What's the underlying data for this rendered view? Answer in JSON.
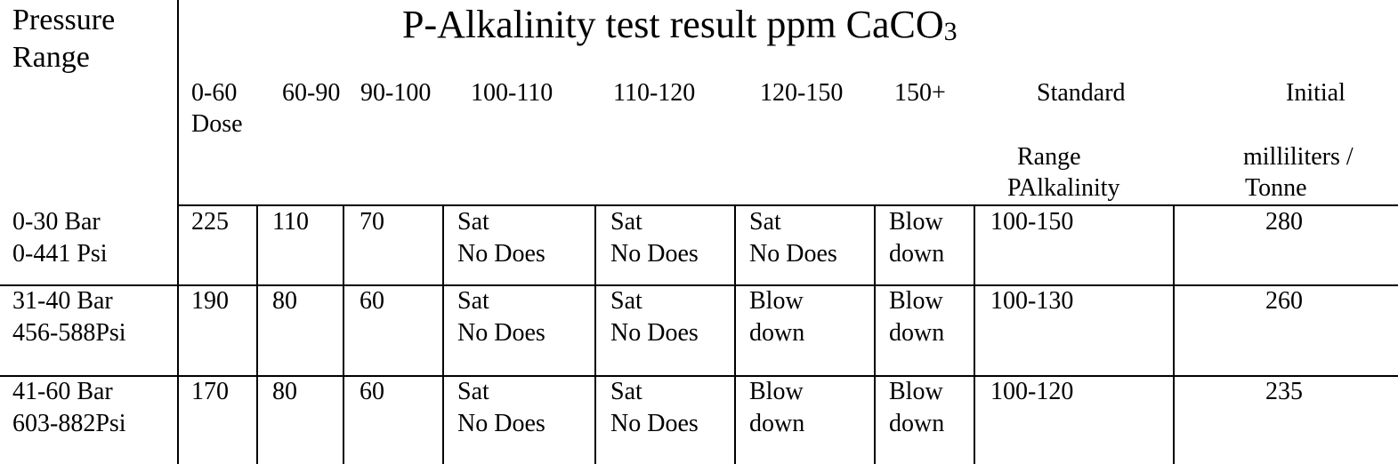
{
  "title": {
    "main": "P-Alkalinity test result  ppm CaCO",
    "sub": "3"
  },
  "row_header": {
    "line1": "Pressure",
    "line2": "Range"
  },
  "columns": {
    "c1_line1": "0-60",
    "c1_line2": "Dose",
    "c2": "60-90",
    "c3": "90-100",
    "c4": "100-110",
    "c5": "110-120",
    "c6": "120-150",
    "c7": "150+",
    "standard_line1": "Standard",
    "standard_line2": "Range",
    "standard_line3": "PAlkalinity",
    "initial_line1": "Initial",
    "initial_line2": "milliliters  /",
    "initial_line3": "Tonne"
  },
  "rows": [
    {
      "bar": "0-30 Bar",
      "psi": "0-441 Psi",
      "v1": "225",
      "v2": "110",
      "v3": "70",
      "c4a": "Sat",
      "c4b": "No Does",
      "c5a": "Sat",
      "c5b": "No Does",
      "c6a": "Sat",
      "c6b": "No Does",
      "c7a": "Blow",
      "c7b": "down",
      "standard": "100-150",
      "initial": "280"
    },
    {
      "bar": "31-40 Bar",
      "psi": "456-588Psi",
      "v1": "190",
      "v2": "80",
      "v3": "60",
      "c4a": "Sat",
      "c4b": "No Does",
      "c5a": "Sat",
      "c5b": "No Does",
      "c6a": "Blow",
      "c6b": "down",
      "c7a": "Blow",
      "c7b": "down",
      "standard": "100-130",
      "initial": "260"
    },
    {
      "bar": "41-60 Bar",
      "psi": "603-882Psi",
      "v1": "170",
      "v2": "80",
      "v3": "60",
      "c4a": "Sat",
      "c4b": "No Does",
      "c5a": "Sat",
      "c5b": "No Does",
      "c6a": "Blow",
      "c6b": "down",
      "c7a": "Blow",
      "c7b": "down",
      "standard": "100-120",
      "initial": "235"
    }
  ]
}
